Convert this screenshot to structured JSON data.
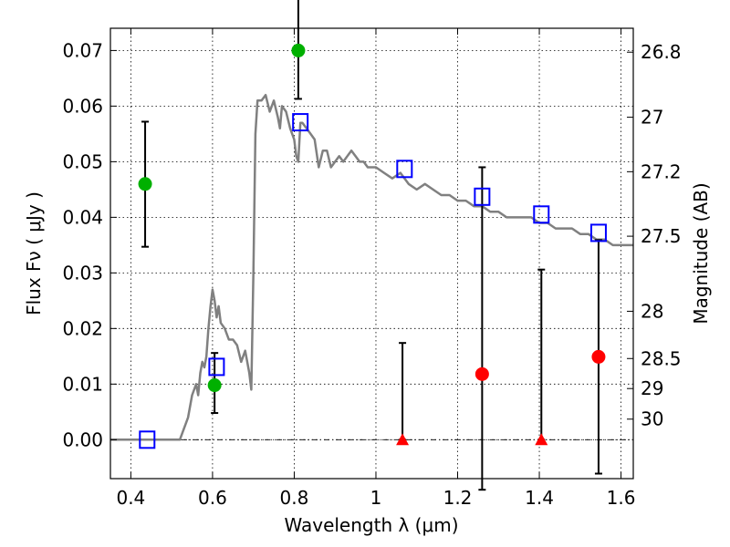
{
  "chart_data": {
    "type": "scatter",
    "title": "",
    "xlabel": "Wavelength  λ (μm)",
    "ylabel": "Flux  Fν  ( μJy )",
    "y2label": "Magnitude (AB)",
    "xlim": [
      0.35,
      1.63
    ],
    "ylim": [
      -0.007,
      0.074
    ],
    "grid": true,
    "x_ticks": [
      {
        "value": 0.4,
        "label": "0.4"
      },
      {
        "value": 0.6,
        "label": "0.6"
      },
      {
        "value": 0.8,
        "label": "0.8"
      },
      {
        "value": 1.0,
        "label": "1"
      },
      {
        "value": 1.2,
        "label": "1.2"
      },
      {
        "value": 1.4,
        "label": "1.4"
      },
      {
        "value": 1.6,
        "label": "1.6"
      }
    ],
    "y_ticks": [
      {
        "value": 0.0,
        "label": "0.00"
      },
      {
        "value": 0.01,
        "label": "0.01"
      },
      {
        "value": 0.02,
        "label": "0.02"
      },
      {
        "value": 0.03,
        "label": "0.03"
      },
      {
        "value": 0.04,
        "label": "0.04"
      },
      {
        "value": 0.05,
        "label": "0.05"
      },
      {
        "value": 0.06,
        "label": "0.06"
      },
      {
        "value": 0.07,
        "label": "0.07"
      }
    ],
    "y2_ticks": [
      {
        "flux": 0.0697,
        "label": "26.8"
      },
      {
        "flux": 0.058,
        "label": "27"
      },
      {
        "flux": 0.0482,
        "label": "27.2"
      },
      {
        "flux": 0.0366,
        "label": "27.5"
      },
      {
        "flux": 0.0231,
        "label": "28"
      },
      {
        "flux": 0.0146,
        "label": "28.5"
      },
      {
        "flux": 0.0092,
        "label": "29"
      },
      {
        "flux": 0.0037,
        "label": "30"
      }
    ],
    "series": [
      {
        "kind": "model_sed",
        "color": "#808080",
        "x": [
          0.35,
          0.4,
          0.45,
          0.5,
          0.52,
          0.54,
          0.55,
          0.56,
          0.565,
          0.57,
          0.575,
          0.58,
          0.585,
          0.59,
          0.595,
          0.6,
          0.605,
          0.61,
          0.615,
          0.62,
          0.63,
          0.64,
          0.65,
          0.66,
          0.67,
          0.68,
          0.69,
          0.695,
          0.7,
          0.705,
          0.71,
          0.72,
          0.73,
          0.74,
          0.75,
          0.76,
          0.765,
          0.77,
          0.78,
          0.79,
          0.8,
          0.805,
          0.81,
          0.815,
          0.82,
          0.83,
          0.84,
          0.85,
          0.86,
          0.87,
          0.88,
          0.89,
          0.9,
          0.91,
          0.92,
          0.93,
          0.94,
          0.95,
          0.96,
          0.97,
          0.98,
          1.0,
          1.02,
          1.04,
          1.06,
          1.08,
          1.1,
          1.12,
          1.14,
          1.16,
          1.18,
          1.2,
          1.22,
          1.24,
          1.26,
          1.28,
          1.3,
          1.32,
          1.34,
          1.36,
          1.38,
          1.4,
          1.42,
          1.44,
          1.46,
          1.48,
          1.5,
          1.52,
          1.54,
          1.56,
          1.58,
          1.6,
          1.63
        ],
        "y": [
          0,
          0,
          0,
          0,
          0,
          0.004,
          0.008,
          0.01,
          0.008,
          0.012,
          0.014,
          0.013,
          0.015,
          0.02,
          0.024,
          0.027,
          0.025,
          0.022,
          0.024,
          0.021,
          0.02,
          0.018,
          0.018,
          0.017,
          0.014,
          0.016,
          0.012,
          0.009,
          0.03,
          0.055,
          0.061,
          0.061,
          0.062,
          0.059,
          0.061,
          0.058,
          0.056,
          0.06,
          0.059,
          0.056,
          0.054,
          0.051,
          0.05,
          0.057,
          0.057,
          0.056,
          0.055,
          0.054,
          0.049,
          0.052,
          0.052,
          0.049,
          0.05,
          0.051,
          0.05,
          0.051,
          0.052,
          0.051,
          0.05,
          0.05,
          0.049,
          0.049,
          0.048,
          0.047,
          0.048,
          0.046,
          0.045,
          0.046,
          0.045,
          0.044,
          0.044,
          0.043,
          0.043,
          0.042,
          0.042,
          0.041,
          0.041,
          0.04,
          0.04,
          0.04,
          0.04,
          0.039,
          0.039,
          0.038,
          0.038,
          0.038,
          0.037,
          0.037,
          0.036,
          0.036,
          0.035,
          0.035,
          0.035
        ]
      },
      {
        "kind": "model_photometry",
        "marker": "open-square",
        "color": "#0000ff",
        "x": [
          0.44,
          0.61,
          0.815,
          1.07,
          1.26,
          1.405,
          1.545
        ],
        "y": [
          0.0,
          0.0131,
          0.0571,
          0.0487,
          0.0437,
          0.0405,
          0.0372
        ]
      },
      {
        "kind": "detections",
        "marker": "circle",
        "color": "#00b000",
        "x": [
          0.435,
          0.605,
          0.81
        ],
        "y": [
          0.046,
          0.0098,
          0.07
        ],
        "err_low": [
          0.0347,
          0.0048,
          0.0613
        ],
        "err_high": [
          0.0572,
          0.0156,
          0.0795
        ]
      },
      {
        "kind": "measurements",
        "marker": "circle",
        "color": "#ff0000",
        "x": [
          1.26,
          1.545
        ],
        "y": [
          0.0118,
          0.0149
        ],
        "err_low": [
          -0.009,
          -0.0061
        ],
        "err_high": [
          0.049,
          0.0359
        ]
      },
      {
        "kind": "non_detections",
        "marker": "triangle",
        "color": "#ff0000",
        "x": [
          1.065,
          1.405
        ],
        "y": [
          0.0,
          0.0
        ],
        "err_low": [
          0.0,
          0.0
        ],
        "err_high": [
          0.0174,
          0.0306
        ]
      }
    ]
  }
}
